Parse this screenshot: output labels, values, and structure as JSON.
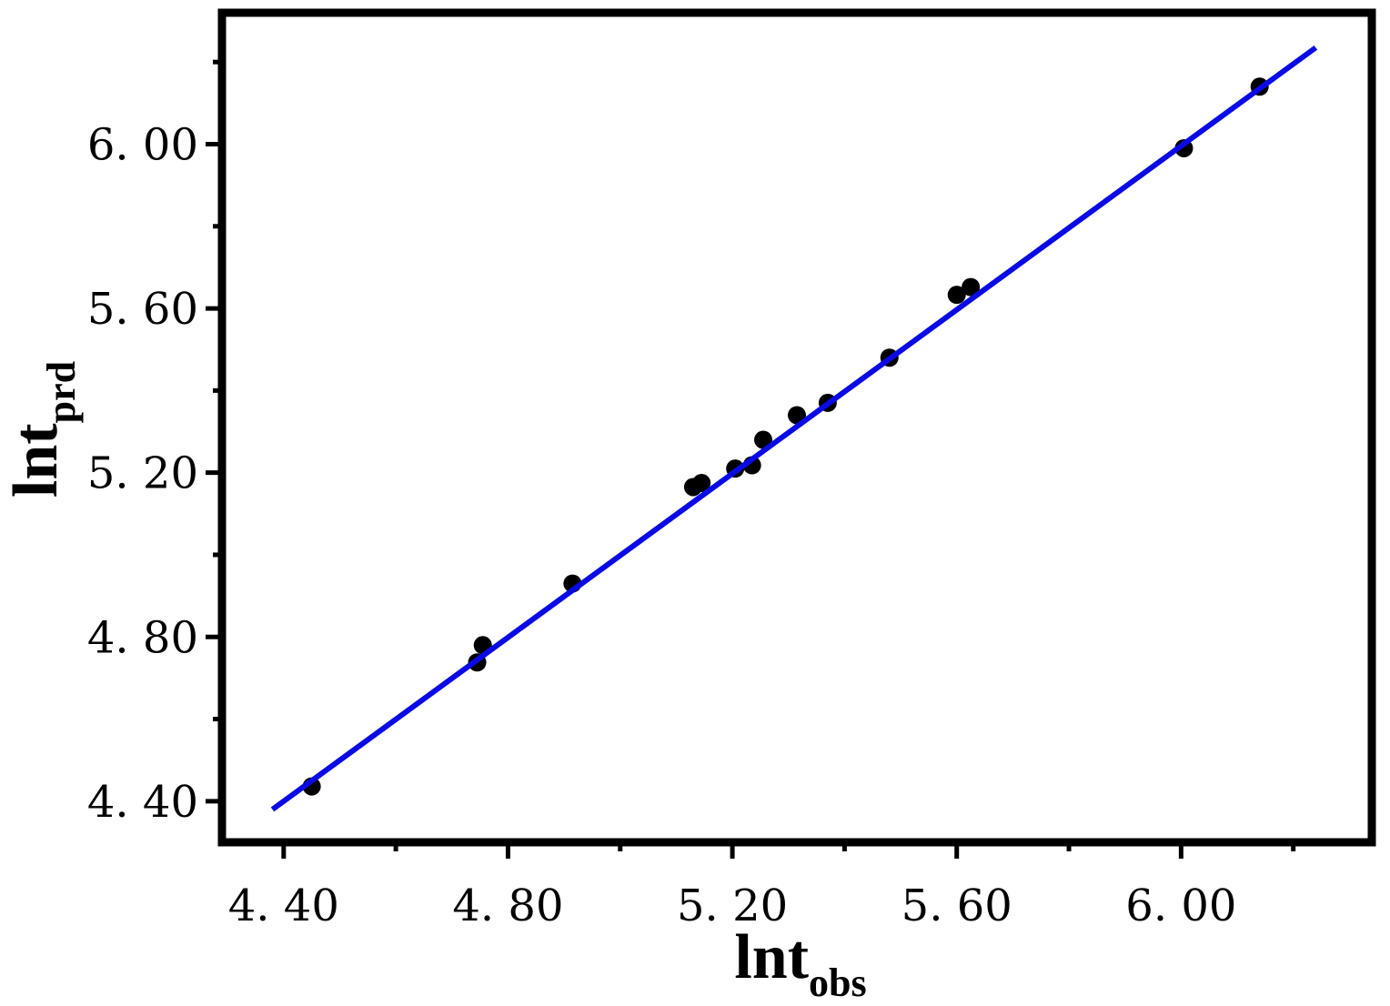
{
  "chart_data": {
    "type": "scatter",
    "title": "",
    "xlabel": {
      "main": "lnt",
      "sub": "obs"
    },
    "ylabel": {
      "main": "lnt",
      "sub": "prd"
    },
    "xlim": [
      4.29,
      6.34
    ],
    "ylim": [
      4.3,
      6.32
    ],
    "xticks": [
      4.4,
      4.8,
      5.2,
      5.6,
      6.0
    ],
    "yticks": [
      4.4,
      4.8,
      5.2,
      5.6,
      6.0
    ],
    "tick_labels_x": [
      "4. 40",
      "4. 80",
      "5. 20",
      "5. 60",
      "6. 00"
    ],
    "tick_labels_y": [
      "4. 40",
      "4. 80",
      "5. 20",
      "5. 60",
      "6. 00"
    ],
    "grid": false,
    "points": [
      {
        "x": 4.45,
        "y": 4.436
      },
      {
        "x": 4.745,
        "y": 4.738
      },
      {
        "x": 4.755,
        "y": 4.78
      },
      {
        "x": 4.915,
        "y": 4.93
      },
      {
        "x": 5.13,
        "y": 5.165
      },
      {
        "x": 5.145,
        "y": 5.175
      },
      {
        "x": 5.205,
        "y": 5.21
      },
      {
        "x": 5.235,
        "y": 5.218
      },
      {
        "x": 5.255,
        "y": 5.28
      },
      {
        "x": 5.315,
        "y": 5.34
      },
      {
        "x": 5.37,
        "y": 5.37
      },
      {
        "x": 5.48,
        "y": 5.48
      },
      {
        "x": 5.6,
        "y": 5.633
      },
      {
        "x": 5.625,
        "y": 5.652
      },
      {
        "x": 6.005,
        "y": 5.99
      },
      {
        "x": 6.14,
        "y": 6.14
      }
    ],
    "fit_line": {
      "x": [
        4.38,
        6.24
      ],
      "y": [
        4.38,
        6.235
      ]
    },
    "colors": {
      "points": "#000000",
      "fit_line": "#0a0ae6",
      "frame": "#000000"
    }
  }
}
